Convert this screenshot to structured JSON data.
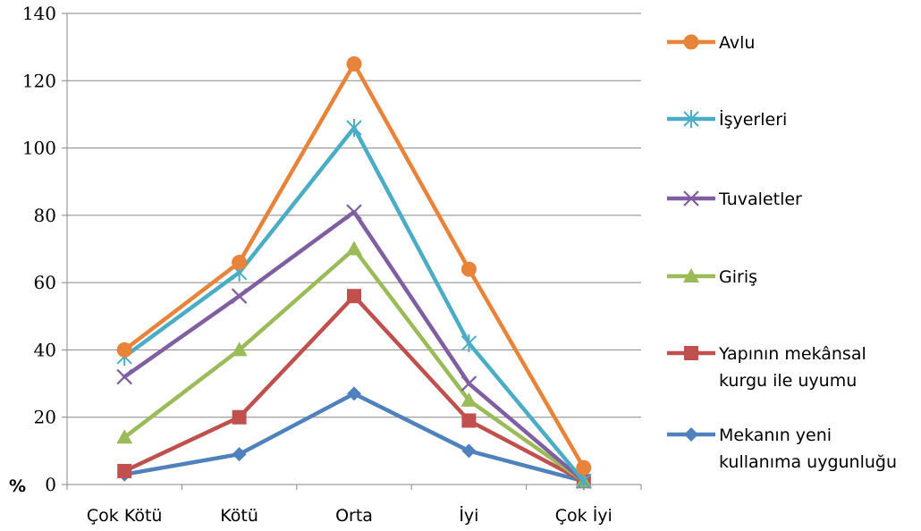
{
  "chart_data": {
    "type": "line",
    "ylabel": "%",
    "ylim": [
      0,
      140
    ],
    "ytick_step": 20,
    "grid": true,
    "legend_position": "right",
    "categories": [
      "Çok Kötü",
      "Kötü",
      "Orta",
      "İyi",
      "Çok İyi"
    ],
    "series": [
      {
        "name": "Avlu",
        "color": "#E8833A",
        "marker": "circle",
        "values": [
          40,
          66,
          125,
          64,
          5
        ]
      },
      {
        "name": "İşyerleri",
        "color": "#4BACC6",
        "marker": "asterisk",
        "values": [
          38,
          63,
          106,
          42,
          1
        ]
      },
      {
        "name": "Tuvaletler",
        "color": "#7F5FA1",
        "marker": "x",
        "values": [
          32,
          56,
          81,
          30,
          1
        ]
      },
      {
        "name": "Giriş",
        "color": "#9BBB59",
        "marker": "triangle",
        "values": [
          14,
          40,
          70,
          25,
          1
        ]
      },
      {
        "name": "Yapının mekânsal kurgu ile uyumu",
        "color": "#C0504D",
        "marker": "square",
        "values": [
          4,
          20,
          56,
          19,
          1
        ]
      },
      {
        "name": "Mekanın yeni kullanıma uygunluğu",
        "color": "#4F81BD",
        "marker": "diamond",
        "values": [
          3,
          9,
          27,
          10,
          1
        ]
      }
    ],
    "legend_lines": [
      [
        "Avlu"
      ],
      [
        "İşyerleri"
      ],
      [
        "Tuvaletler"
      ],
      [
        "Giriş"
      ],
      [
        "Yapının mekânsal",
        "kurgu ile uyumu"
      ],
      [
        "Mekanın yeni",
        "kullanıma uygunluğu"
      ]
    ]
  }
}
